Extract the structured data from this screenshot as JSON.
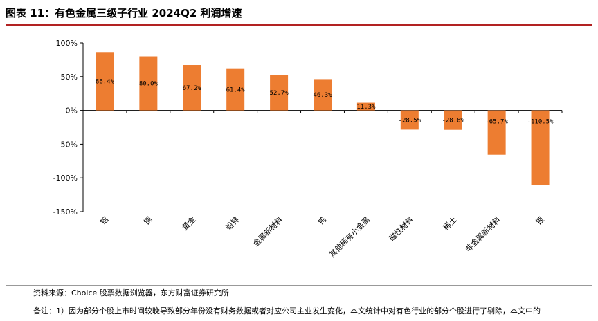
{
  "figure": {
    "title": "图表 11：有色金属三级子行业 2024Q2 利润增速",
    "source": "资料来源：Choice 股票数据浏览器，东方财富证券研究所",
    "note": "备注：1）因为部分个股上市时间较晚导致部分年份没有财务数据或者对应公司主业发生变化，本文统计中对有色行业的部分个股进行了剔除，本文中的"
  },
  "colors": {
    "bar": "#ED7D31",
    "axis": "#000000",
    "title_rule": "#b22222"
  },
  "chart_data": {
    "type": "bar",
    "categories": [
      "铝",
      "铜",
      "黄金",
      "铅锌",
      "金属新材料",
      "钨",
      "其他稀有小金属",
      "磁性材料",
      "稀土",
      "非金属新材料",
      "锂"
    ],
    "values": [
      86.4,
      80.0,
      67.2,
      61.4,
      52.7,
      46.3,
      11.3,
      -28.5,
      -28.8,
      -65.7,
      -110.5
    ],
    "data_labels": [
      "86.4%",
      "80.0%",
      "67.2%",
      "61.4%",
      "52.7%",
      "46.3%",
      "11.3%",
      "-28.5%",
      "-28.8%",
      "-65.7%",
      "-110.5%"
    ],
    "ylim": [
      -150,
      100
    ],
    "yticks": [
      100,
      50,
      0,
      -50,
      -100,
      -150
    ],
    "ytick_labels": [
      "100%",
      "50%",
      "0%",
      "-50%",
      "-100%",
      "-150%"
    ],
    "legend": "none",
    "grid": false
  }
}
